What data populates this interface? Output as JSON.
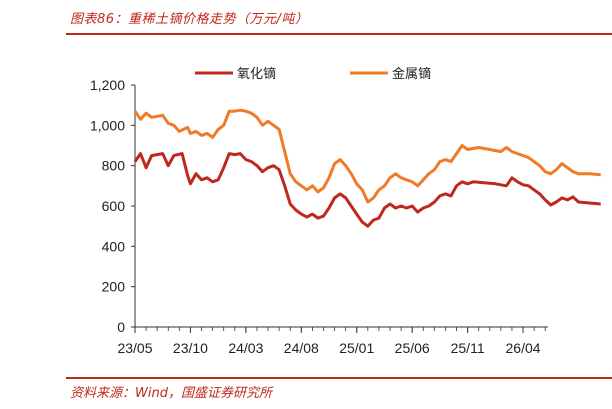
{
  "header": {
    "title": "图表86：重稀土镝价格走势（万元/吨）"
  },
  "footer": {
    "source": "资料来源：Wind，国盛证券研究所"
  },
  "chart_data": {
    "type": "line",
    "title": "图表86：重稀土镝价格走势（万元/吨）",
    "xlabel": "",
    "ylabel": "",
    "ylim": [
      0,
      1200
    ],
    "yticks": [
      "0",
      "200",
      "400",
      "600",
      "800",
      "1,000",
      "1,200"
    ],
    "ytick_values": [
      0,
      200,
      400,
      600,
      800,
      1000,
      1200
    ],
    "xticks": [
      "23/05",
      "23/10",
      "24/03",
      "24/08",
      "25/01",
      "25/06",
      "25/11",
      "26/04"
    ],
    "grid": false,
    "legend_position": "top",
    "colors": {
      "氧化镝": "#c0281d",
      "金属镝": "#f07a28"
    },
    "series": [
      {
        "name": "氧化镝",
        "points": [
          [
            0.0,
            820
          ],
          [
            0.1,
            860
          ],
          [
            0.2,
            790
          ],
          [
            0.3,
            850
          ],
          [
            0.5,
            860
          ],
          [
            0.6,
            800
          ],
          [
            0.7,
            850
          ],
          [
            0.85,
            860
          ],
          [
            0.95,
            750
          ],
          [
            1.0,
            710
          ],
          [
            1.1,
            760
          ],
          [
            1.2,
            730
          ],
          [
            1.3,
            740
          ],
          [
            1.4,
            720
          ],
          [
            1.5,
            730
          ],
          [
            1.6,
            790
          ],
          [
            1.7,
            860
          ],
          [
            1.8,
            855
          ],
          [
            1.9,
            860
          ],
          [
            2.0,
            830
          ],
          [
            2.1,
            820
          ],
          [
            2.2,
            800
          ],
          [
            2.3,
            770
          ],
          [
            2.4,
            790
          ],
          [
            2.5,
            800
          ],
          [
            2.6,
            780
          ],
          [
            2.7,
            700
          ],
          [
            2.8,
            610
          ],
          [
            2.9,
            580
          ],
          [
            3.0,
            560
          ],
          [
            3.1,
            545
          ],
          [
            3.2,
            560
          ],
          [
            3.3,
            540
          ],
          [
            3.4,
            550
          ],
          [
            3.5,
            590
          ],
          [
            3.6,
            640
          ],
          [
            3.7,
            660
          ],
          [
            3.8,
            640
          ],
          [
            3.9,
            600
          ],
          [
            4.0,
            560
          ],
          [
            4.1,
            520
          ],
          [
            4.2,
            500
          ],
          [
            4.3,
            530
          ],
          [
            4.4,
            540
          ],
          [
            4.5,
            590
          ],
          [
            4.6,
            610
          ],
          [
            4.7,
            590
          ],
          [
            4.8,
            600
          ],
          [
            4.9,
            590
          ],
          [
            5.0,
            600
          ],
          [
            5.1,
            570
          ],
          [
            5.2,
            590
          ],
          [
            5.3,
            600
          ],
          [
            5.4,
            620
          ],
          [
            5.5,
            650
          ],
          [
            5.6,
            660
          ],
          [
            5.7,
            650
          ],
          [
            5.8,
            700
          ],
          [
            5.9,
            720
          ],
          [
            6.0,
            710
          ],
          [
            6.1,
            720
          ],
          [
            6.3,
            715
          ],
          [
            6.5,
            710
          ],
          [
            6.7,
            700
          ],
          [
            6.8,
            740
          ],
          [
            6.9,
            720
          ],
          [
            7.0,
            705
          ],
          [
            7.1,
            700
          ],
          [
            7.2,
            680
          ],
          [
            7.3,
            660
          ],
          [
            7.4,
            630
          ],
          [
            7.5,
            605
          ],
          [
            7.6,
            620
          ],
          [
            7.7,
            640
          ],
          [
            7.8,
            630
          ],
          [
            7.9,
            645
          ],
          [
            8.0,
            620
          ],
          [
            8.2,
            615
          ],
          [
            8.4,
            610
          ]
        ]
      },
      {
        "name": "金属镝",
        "points": [
          [
            0.0,
            1070
          ],
          [
            0.1,
            1030
          ],
          [
            0.2,
            1060
          ],
          [
            0.3,
            1040
          ],
          [
            0.5,
            1050
          ],
          [
            0.6,
            1010
          ],
          [
            0.7,
            1000
          ],
          [
            0.8,
            970
          ],
          [
            0.95,
            990
          ],
          [
            1.0,
            960
          ],
          [
            1.1,
            970
          ],
          [
            1.2,
            950
          ],
          [
            1.3,
            960
          ],
          [
            1.4,
            940
          ],
          [
            1.5,
            980
          ],
          [
            1.6,
            1000
          ],
          [
            1.7,
            1070
          ],
          [
            1.8,
            1070
          ],
          [
            1.9,
            1075
          ],
          [
            2.0,
            1070
          ],
          [
            2.1,
            1060
          ],
          [
            2.2,
            1040
          ],
          [
            2.3,
            1000
          ],
          [
            2.4,
            1020
          ],
          [
            2.5,
            1000
          ],
          [
            2.6,
            980
          ],
          [
            2.7,
            870
          ],
          [
            2.8,
            760
          ],
          [
            2.9,
            720
          ],
          [
            3.0,
            700
          ],
          [
            3.1,
            680
          ],
          [
            3.2,
            700
          ],
          [
            3.3,
            670
          ],
          [
            3.4,
            690
          ],
          [
            3.5,
            740
          ],
          [
            3.6,
            810
          ],
          [
            3.7,
            830
          ],
          [
            3.8,
            800
          ],
          [
            3.9,
            760
          ],
          [
            4.0,
            710
          ],
          [
            4.1,
            680
          ],
          [
            4.2,
            620
          ],
          [
            4.3,
            640
          ],
          [
            4.4,
            680
          ],
          [
            4.5,
            700
          ],
          [
            4.6,
            740
          ],
          [
            4.7,
            760
          ],
          [
            4.8,
            740
          ],
          [
            4.9,
            730
          ],
          [
            5.0,
            720
          ],
          [
            5.1,
            700
          ],
          [
            5.2,
            730
          ],
          [
            5.3,
            760
          ],
          [
            5.4,
            780
          ],
          [
            5.5,
            820
          ],
          [
            5.6,
            830
          ],
          [
            5.7,
            820
          ],
          [
            5.8,
            860
          ],
          [
            5.9,
            900
          ],
          [
            6.0,
            880
          ],
          [
            6.2,
            890
          ],
          [
            6.4,
            880
          ],
          [
            6.6,
            870
          ],
          [
            6.7,
            890
          ],
          [
            6.8,
            870
          ],
          [
            6.9,
            860
          ],
          [
            7.0,
            850
          ],
          [
            7.1,
            840
          ],
          [
            7.2,
            820
          ],
          [
            7.3,
            800
          ],
          [
            7.4,
            770
          ],
          [
            7.5,
            760
          ],
          [
            7.6,
            780
          ],
          [
            7.7,
            810
          ],
          [
            7.8,
            790
          ],
          [
            7.9,
            770
          ],
          [
            8.0,
            760
          ],
          [
            8.2,
            760
          ],
          [
            8.4,
            755
          ]
        ]
      }
    ]
  }
}
